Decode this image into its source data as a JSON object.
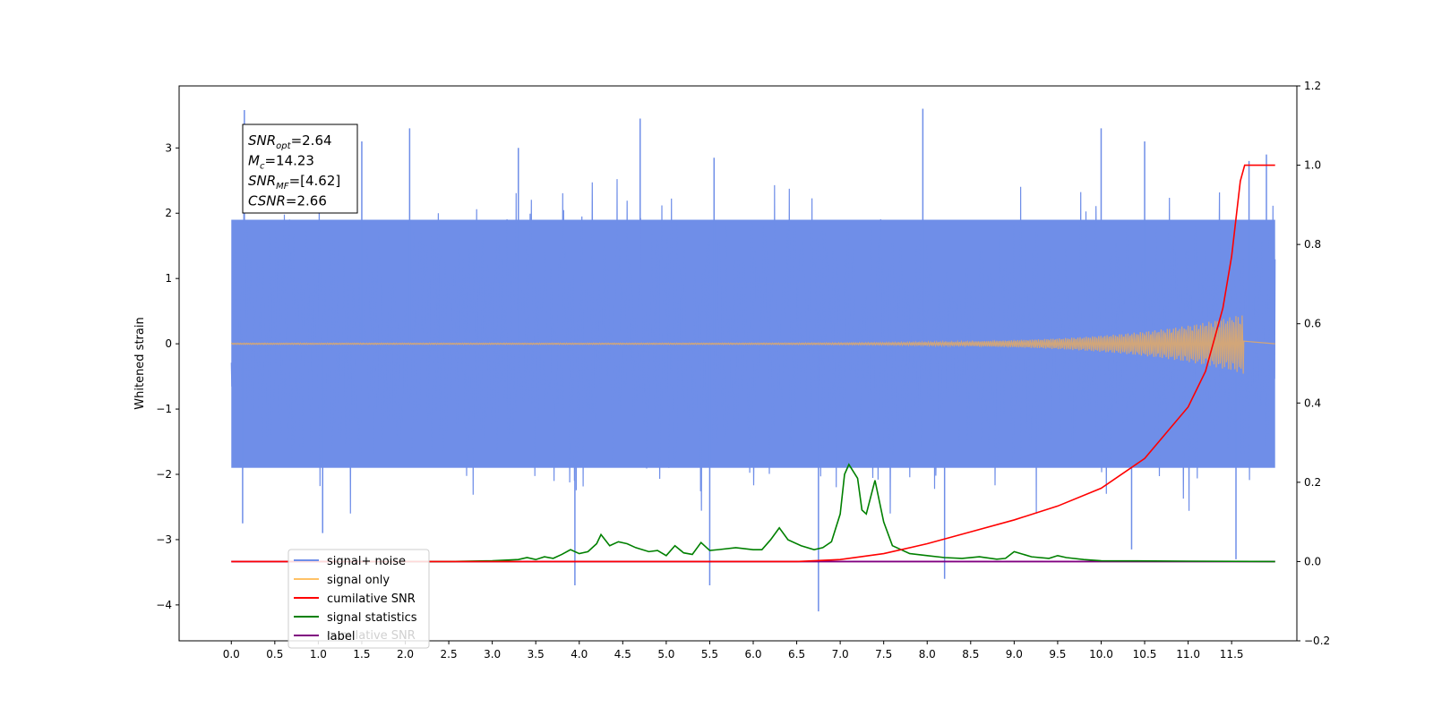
{
  "chart_data": {
    "type": "line",
    "ylabel": "Whitened strain",
    "x_range": [
      -0.6,
      12.25
    ],
    "y_left_range": [
      -4.55,
      3.95
    ],
    "y_right_range": [
      -0.2,
      1.2
    ],
    "x_ticks": [
      0.0,
      0.5,
      1.0,
      1.5,
      2.0,
      2.5,
      3.0,
      3.5,
      4.0,
      4.5,
      5.0,
      5.5,
      6.0,
      6.5,
      7.0,
      7.5,
      8.0,
      8.5,
      9.0,
      9.5,
      10.0,
      10.5,
      11.0,
      11.5
    ],
    "x_tick_labels": [
      "0.0",
      "0.5",
      "1.0",
      "1.5",
      "2.0",
      "2.5",
      "3.0",
      "3.5",
      "4.0",
      "4.5",
      "5.0",
      "5.5",
      "6.0",
      "6.5",
      "7.0",
      "7.5",
      "8.0",
      "8.5",
      "9.0",
      "9.5",
      "10.0",
      "10.5",
      "11.0",
      "11.5"
    ],
    "y_left_ticks": [
      -4,
      -3,
      -2,
      -1,
      0,
      1,
      2,
      3
    ],
    "y_left_tick_labels": [
      "−4",
      "−3",
      "−2",
      "−1",
      "0",
      "1",
      "2",
      "3"
    ],
    "y_right_ticks": [
      -0.2,
      0.0,
      0.2,
      0.4,
      0.6,
      0.8,
      1.0,
      1.2
    ],
    "y_right_tick_labels": [
      "−0.2",
      "0.0",
      "0.2",
      "0.4",
      "0.6",
      "0.8",
      "1.0",
      "1.2"
    ],
    "annotation": {
      "lines": [
        {
          "name": "SNR",
          "sub": "opt",
          "value": "=2.64"
        },
        {
          "name": "M",
          "sub": "c",
          "value": "=14.23"
        },
        {
          "name": "SNR",
          "sub": "MF",
          "value": "=[4.62]"
        },
        {
          "name": "CSNR",
          "sub": "",
          "value": "=2.66"
        }
      ]
    },
    "legend": {
      "placement": "lower-left",
      "entries": [
        {
          "label": "signal+ noise",
          "color": "#6f8ee8"
        },
        {
          "label": "signal only",
          "color": "#ffc266"
        },
        {
          "label": "cumilative SNR",
          "color": "#ff0000"
        },
        {
          "label": "signal statistics",
          "color": "#008000"
        },
        {
          "label": "label",
          "color": "#800080"
        }
      ],
      "hidden_text": "cumilative SNR",
      "hidden_text_color": "#d0d0d0"
    },
    "series": [
      {
        "name": "signal+ noise",
        "axis": "left",
        "color": "#6f8ee8",
        "x_span": [
          0.0,
          12.0
        ],
        "band": [
          -1.9,
          1.9
        ],
        "spikes": [
          {
            "x": 0.15,
            "y": 3.58
          },
          {
            "x": 0.13,
            "y": -2.75
          },
          {
            "x": 1.05,
            "y": -2.9
          },
          {
            "x": 1.5,
            "y": 3.1
          },
          {
            "x": 2.05,
            "y": 3.3
          },
          {
            "x": 3.3,
            "y": 3.0
          },
          {
            "x": 3.95,
            "y": -3.7
          },
          {
            "x": 4.7,
            "y": 3.45
          },
          {
            "x": 5.5,
            "y": -3.7
          },
          {
            "x": 5.55,
            "y": 2.85
          },
          {
            "x": 6.75,
            "y": -4.1
          },
          {
            "x": 7.95,
            "y": 3.6
          },
          {
            "x": 8.2,
            "y": -3.6
          },
          {
            "x": 10.0,
            "y": 3.3
          },
          {
            "x": 10.35,
            "y": -3.15
          },
          {
            "x": 10.5,
            "y": 3.1
          },
          {
            "x": 11.55,
            "y": -3.3
          },
          {
            "x": 11.7,
            "y": 2.8
          },
          {
            "x": 11.9,
            "y": 2.9
          }
        ]
      },
      {
        "name": "signal only",
        "axis": "left",
        "color": "#d2a679",
        "x_span": [
          0.0,
          12.0
        ],
        "chirp_peak": {
          "x": 11.64,
          "amplitude": 0.45
        }
      },
      {
        "name": "cumilative SNR",
        "axis": "right",
        "color": "#ff0000",
        "x": [
          0.0,
          6.5,
          7.0,
          7.5,
          8.0,
          8.5,
          9.0,
          9.5,
          10.0,
          10.5,
          11.0,
          11.2,
          11.4,
          11.5,
          11.6,
          11.65,
          12.0
        ],
        "y": [
          0.0,
          0.0,
          0.005,
          0.02,
          0.045,
          0.075,
          0.105,
          0.14,
          0.185,
          0.26,
          0.39,
          0.48,
          0.64,
          0.77,
          0.96,
          1.0,
          1.0
        ]
      },
      {
        "name": "signal statistics",
        "axis": "right",
        "color": "#008000",
        "x": [
          1.5,
          2.0,
          2.5,
          3.0,
          3.3,
          3.4,
          3.5,
          3.6,
          3.7,
          3.8,
          3.9,
          4.0,
          4.1,
          4.2,
          4.25,
          4.35,
          4.45,
          4.55,
          4.65,
          4.8,
          4.9,
          5.0,
          5.1,
          5.2,
          5.3,
          5.4,
          5.5,
          5.6,
          5.8,
          6.0,
          6.1,
          6.2,
          6.3,
          6.4,
          6.55,
          6.7,
          6.8,
          6.9,
          7.0,
          7.05,
          7.1,
          7.2,
          7.25,
          7.3,
          7.4,
          7.5,
          7.6,
          7.8,
          8.0,
          8.2,
          8.4,
          8.6,
          8.8,
          8.9,
          9.0,
          9.2,
          9.4,
          9.5,
          9.6,
          9.8,
          10.0,
          11.0,
          12.0
        ],
        "y": [
          0.0,
          0.0,
          0.0,
          0.002,
          0.005,
          0.01,
          0.005,
          0.012,
          0.008,
          0.018,
          0.03,
          0.02,
          0.025,
          0.045,
          0.068,
          0.04,
          0.05,
          0.045,
          0.035,
          0.025,
          0.028,
          0.015,
          0.04,
          0.022,
          0.018,
          0.048,
          0.028,
          0.03,
          0.035,
          0.03,
          0.03,
          0.055,
          0.085,
          0.055,
          0.04,
          0.03,
          0.035,
          0.05,
          0.12,
          0.22,
          0.245,
          0.21,
          0.13,
          0.12,
          0.205,
          0.1,
          0.04,
          0.02,
          0.015,
          0.01,
          0.008,
          0.012,
          0.006,
          0.008,
          0.025,
          0.012,
          0.008,
          0.015,
          0.01,
          0.005,
          0.002,
          0.001,
          0.0
        ]
      },
      {
        "name": "label",
        "axis": "right",
        "color": "#800080",
        "x": [
          0.0,
          12.0
        ],
        "y": [
          0.0,
          0.0
        ]
      }
    ]
  }
}
